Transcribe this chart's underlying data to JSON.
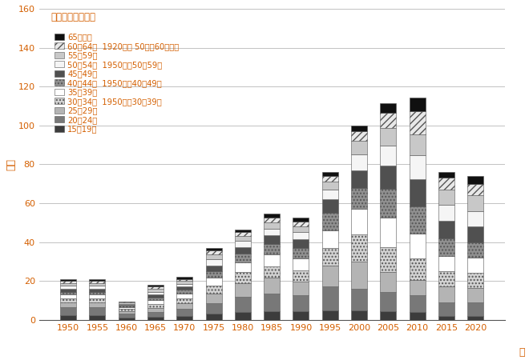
{
  "years": [
    1950,
    1955,
    1960,
    1965,
    1970,
    1975,
    1980,
    1985,
    1990,
    1995,
    2000,
    2005,
    2010,
    2015,
    2020
  ],
  "age_groups": [
    "15～19歳",
    "20～24歳",
    "25～29歳",
    "30～34歳",
    "35～39歳",
    "40～44歳",
    "45～49歳",
    "50～54歳",
    "55～59歳",
    "60～64歳",
    "65歳以上"
  ],
  "data": {
    "15～19歳": [
      2.5,
      2.5,
      1.2,
      1.5,
      2.0,
      3.0,
      4.0,
      4.5,
      4.5,
      5.0,
      5.0,
      4.5,
      4.0,
      2.0,
      2.0
    ],
    "20～24歳": [
      4.0,
      4.0,
      2.0,
      2.5,
      3.5,
      5.5,
      8.0,
      9.0,
      8.0,
      12.0,
      11.0,
      10.0,
      8.5,
      7.0,
      7.0
    ],
    "25～29歳": [
      2.5,
      2.5,
      1.3,
      2.0,
      3.0,
      5.0,
      7.0,
      8.0,
      7.0,
      11.0,
      14.0,
      10.0,
      8.0,
      8.0,
      7.5
    ],
    "30～34歳": [
      2.0,
      2.0,
      1.0,
      2.0,
      2.5,
      4.0,
      5.5,
      6.0,
      6.0,
      9.0,
      14.0,
      13.0,
      11.0,
      8.0,
      7.5
    ],
    "35～39歳": [
      2.0,
      2.0,
      1.0,
      2.0,
      2.5,
      4.0,
      5.0,
      6.0,
      6.0,
      9.0,
      13.0,
      15.0,
      13.0,
      8.0,
      8.0
    ],
    "40～44歳": [
      1.5,
      1.5,
      0.8,
      1.5,
      2.0,
      3.5,
      4.5,
      5.5,
      5.5,
      9.0,
      11.0,
      15.0,
      14.0,
      9.0,
      8.0
    ],
    "45～49歳": [
      1.5,
      1.5,
      0.5,
      1.5,
      1.5,
      3.0,
      3.5,
      4.5,
      4.5,
      7.0,
      9.0,
      12.0,
      14.0,
      9.0,
      8.0
    ],
    "50～54歳": [
      1.5,
      1.5,
      0.5,
      1.5,
      1.5,
      3.0,
      3.0,
      3.5,
      3.5,
      5.0,
      8.0,
      10.0,
      12.0,
      8.0,
      8.0
    ],
    "55～59歳": [
      1.5,
      1.5,
      0.5,
      1.5,
      1.5,
      2.5,
      2.5,
      3.0,
      3.0,
      4.0,
      7.0,
      9.0,
      11.0,
      8.0,
      8.0
    ],
    "60～64歳": [
      1.0,
      1.0,
      0.4,
      1.0,
      1.0,
      2.0,
      2.0,
      2.5,
      2.5,
      3.0,
      5.0,
      8.0,
      12.0,
      6.0,
      6.0
    ],
    "65歳以上": [
      1.0,
      1.0,
      0.3,
      1.0,
      1.0,
      1.5,
      1.5,
      2.0,
      2.0,
      2.0,
      3.0,
      5.0,
      7.0,
      3.0,
      4.0
    ]
  },
  "colors": {
    "15～19歳": "#3c3c3c",
    "20～24歳": "#787878",
    "25～29歳": "#b4b4b4",
    "30～34歳": "#d2d2d2",
    "35～39歳": "#ffffff",
    "40～44歳": "#909090",
    "45～49歳": "#505050",
    "50～54歳": "#f5f5f5",
    "55～59歳": "#c8c8c8",
    "60～64歳": "#e8e8e8",
    "65歳以上": "#101010"
  },
  "hatches": {
    "15～19歳": "",
    "20～24歳": "",
    "25～29歳": "",
    "30～34歳": "....",
    "35～39歳": "",
    "40～44歳": "....",
    "45～49歳": "",
    "50～54歳": "",
    "55～59歳": "",
    "60～64歳": "////",
    "65歳以上": ""
  },
  "title": "女性　上から順に",
  "ylabel": "万人",
  "xlabel": "年",
  "ylim": [
    0,
    160
  ],
  "yticks": [
    0,
    20,
    40,
    60,
    80,
    100,
    120,
    140,
    160
  ],
  "legend_items": [
    {
      "label": "65歳以上",
      "note": ""
    },
    {
      "label": "60～64歳",
      "note": "1920年と 50年は60歳以上"
    },
    {
      "label": "55～59歳",
      "note": ""
    },
    {
      "label": "50～54歳",
      "note": "1950年は50～59歳"
    },
    {
      "label": "45～49歳",
      "note": ""
    },
    {
      "label": "40～44歳",
      "note": "1950年は40～49歳"
    },
    {
      "label": "35～39歳",
      "note": ""
    },
    {
      "label": "30～34歳",
      "note": "1950年は30～39歳"
    },
    {
      "label": "25～29歳",
      "note": ""
    },
    {
      "label": "20～24歳",
      "note": ""
    },
    {
      "label": "15～19歳",
      "note": ""
    }
  ],
  "title_color": "#d45f00",
  "axis_label_color": "#d45f00",
  "tick_color": "#d45f00"
}
